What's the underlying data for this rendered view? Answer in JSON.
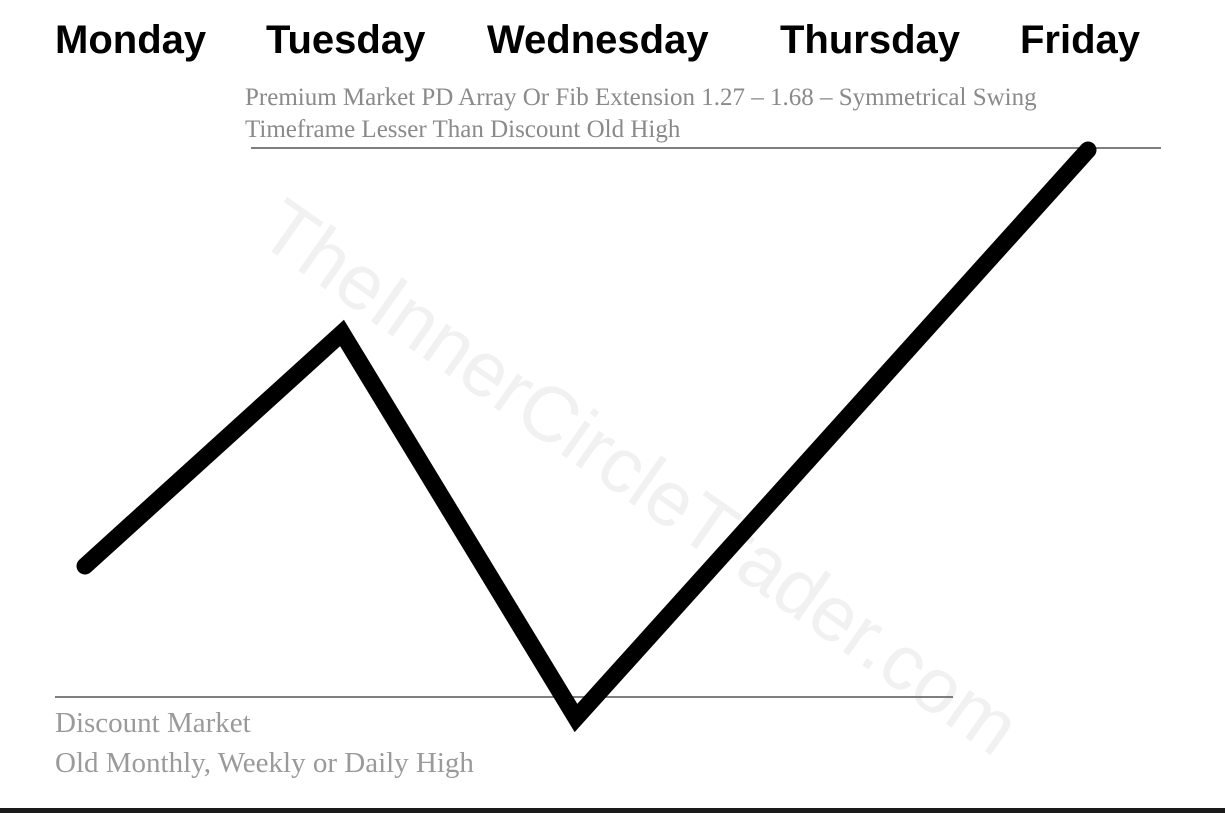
{
  "days": {
    "monday": "Monday",
    "tuesday": "Tuesday",
    "wednesday": "Wednesday",
    "thursday": "Thursday",
    "friday": "Friday"
  },
  "premium": {
    "line1": "Premium Market PD Array Or Fib Extension 1.27 – 1.68 – Symmetrical Swing",
    "line2": "Timeframe Lesser Than Discount Old High"
  },
  "discount": {
    "line1": "Discount Market",
    "line2": "Old Monthly, Weekly or Daily High"
  },
  "watermark": "TheInnerCircleTrader.com",
  "colors": {
    "path": "#000000",
    "reference_line": "#555555",
    "annotation_text": "#8a8a8a",
    "watermark": "#f1f1f1"
  }
}
